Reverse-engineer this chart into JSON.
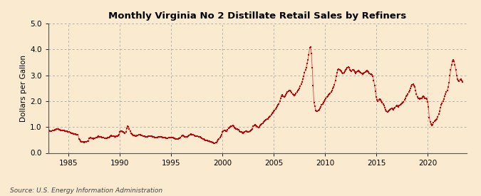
{
  "title": "Monthly Virginia No 2 Distillate Retail Sales by Refiners",
  "ylabel": "Dollars per Gallon",
  "xlabel": "",
  "source": "Source: U.S. Energy Information Administration",
  "bg_color": "#faebd0",
  "line_color": "#cc0000",
  "ylim": [
    0.0,
    5.0
  ],
  "yticks": [
    0.0,
    1.0,
    2.0,
    3.0,
    4.0,
    5.0
  ],
  "xticks": [
    1985,
    1990,
    1995,
    2000,
    2005,
    2010,
    2015,
    2020
  ],
  "xlim_start": 1983.0,
  "xlim_end": 2023.8,
  "data": [
    [
      1983.0,
      0.87
    ],
    [
      1983.083,
      0.86
    ],
    [
      1983.167,
      0.85
    ],
    [
      1983.25,
      0.84
    ],
    [
      1983.333,
      0.85
    ],
    [
      1983.417,
      0.86
    ],
    [
      1983.5,
      0.87
    ],
    [
      1983.583,
      0.88
    ],
    [
      1983.667,
      0.89
    ],
    [
      1983.75,
      0.9
    ],
    [
      1983.833,
      0.91
    ],
    [
      1983.917,
      0.92
    ],
    [
      1984.0,
      0.91
    ],
    [
      1984.083,
      0.9
    ],
    [
      1984.167,
      0.89
    ],
    [
      1984.25,
      0.88
    ],
    [
      1984.333,
      0.87
    ],
    [
      1984.417,
      0.88
    ],
    [
      1984.5,
      0.87
    ],
    [
      1984.583,
      0.86
    ],
    [
      1984.667,
      0.85
    ],
    [
      1984.75,
      0.84
    ],
    [
      1984.833,
      0.83
    ],
    [
      1984.917,
      0.82
    ],
    [
      1985.0,
      0.81
    ],
    [
      1985.083,
      0.8
    ],
    [
      1985.167,
      0.79
    ],
    [
      1985.25,
      0.77
    ],
    [
      1985.333,
      0.76
    ],
    [
      1985.417,
      0.75
    ],
    [
      1985.5,
      0.74
    ],
    [
      1985.583,
      0.73
    ],
    [
      1985.667,
      0.72
    ],
    [
      1985.75,
      0.71
    ],
    [
      1985.833,
      0.7
    ],
    [
      1985.917,
      0.69
    ],
    [
      1986.0,
      0.55
    ],
    [
      1986.083,
      0.5
    ],
    [
      1986.167,
      0.46
    ],
    [
      1986.25,
      0.44
    ],
    [
      1986.333,
      0.43
    ],
    [
      1986.417,
      0.42
    ],
    [
      1986.5,
      0.41
    ],
    [
      1986.583,
      0.42
    ],
    [
      1986.667,
      0.43
    ],
    [
      1986.75,
      0.44
    ],
    [
      1986.833,
      0.45
    ],
    [
      1986.917,
      0.46
    ],
    [
      1987.0,
      0.56
    ],
    [
      1987.083,
      0.57
    ],
    [
      1987.167,
      0.58
    ],
    [
      1987.25,
      0.57
    ],
    [
      1987.333,
      0.56
    ],
    [
      1987.417,
      0.55
    ],
    [
      1987.5,
      0.56
    ],
    [
      1987.583,
      0.57
    ],
    [
      1987.667,
      0.58
    ],
    [
      1987.75,
      0.6
    ],
    [
      1987.833,
      0.62
    ],
    [
      1987.917,
      0.64
    ],
    [
      1988.0,
      0.63
    ],
    [
      1988.083,
      0.62
    ],
    [
      1988.167,
      0.61
    ],
    [
      1988.25,
      0.6
    ],
    [
      1988.333,
      0.59
    ],
    [
      1988.417,
      0.58
    ],
    [
      1988.5,
      0.57
    ],
    [
      1988.583,
      0.57
    ],
    [
      1988.667,
      0.57
    ],
    [
      1988.75,
      0.57
    ],
    [
      1988.833,
      0.58
    ],
    [
      1988.917,
      0.59
    ],
    [
      1989.0,
      0.62
    ],
    [
      1989.083,
      0.65
    ],
    [
      1989.167,
      0.67
    ],
    [
      1989.25,
      0.66
    ],
    [
      1989.333,
      0.65
    ],
    [
      1989.417,
      0.64
    ],
    [
      1989.5,
      0.63
    ],
    [
      1989.583,
      0.63
    ],
    [
      1989.667,
      0.64
    ],
    [
      1989.75,
      0.65
    ],
    [
      1989.833,
      0.67
    ],
    [
      1989.917,
      0.7
    ],
    [
      1990.0,
      0.8
    ],
    [
      1990.083,
      0.85
    ],
    [
      1990.167,
      0.83
    ],
    [
      1990.25,
      0.82
    ],
    [
      1990.333,
      0.8
    ],
    [
      1990.417,
      0.78
    ],
    [
      1990.5,
      0.76
    ],
    [
      1990.583,
      0.82
    ],
    [
      1990.667,
      0.95
    ],
    [
      1990.75,
      1.02
    ],
    [
      1990.833,
      1.0
    ],
    [
      1990.917,
      0.92
    ],
    [
      1991.0,
      0.83
    ],
    [
      1991.083,
      0.76
    ],
    [
      1991.167,
      0.73
    ],
    [
      1991.25,
      0.7
    ],
    [
      1991.333,
      0.68
    ],
    [
      1991.417,
      0.67
    ],
    [
      1991.5,
      0.66
    ],
    [
      1991.583,
      0.66
    ],
    [
      1991.667,
      0.67
    ],
    [
      1991.75,
      0.68
    ],
    [
      1991.833,
      0.69
    ],
    [
      1991.917,
      0.7
    ],
    [
      1992.0,
      0.69
    ],
    [
      1992.083,
      0.68
    ],
    [
      1992.167,
      0.67
    ],
    [
      1992.25,
      0.66
    ],
    [
      1992.333,
      0.65
    ],
    [
      1992.417,
      0.64
    ],
    [
      1992.5,
      0.63
    ],
    [
      1992.583,
      0.63
    ],
    [
      1992.667,
      0.63
    ],
    [
      1992.75,
      0.64
    ],
    [
      1992.833,
      0.65
    ],
    [
      1992.917,
      0.66
    ],
    [
      1993.0,
      0.65
    ],
    [
      1993.083,
      0.64
    ],
    [
      1993.167,
      0.63
    ],
    [
      1993.25,
      0.62
    ],
    [
      1993.333,
      0.61
    ],
    [
      1993.417,
      0.6
    ],
    [
      1993.5,
      0.6
    ],
    [
      1993.583,
      0.6
    ],
    [
      1993.667,
      0.6
    ],
    [
      1993.75,
      0.61
    ],
    [
      1993.833,
      0.62
    ],
    [
      1993.917,
      0.63
    ],
    [
      1994.0,
      0.62
    ],
    [
      1994.083,
      0.61
    ],
    [
      1994.167,
      0.6
    ],
    [
      1994.25,
      0.59
    ],
    [
      1994.333,
      0.58
    ],
    [
      1994.417,
      0.58
    ],
    [
      1994.5,
      0.57
    ],
    [
      1994.583,
      0.57
    ],
    [
      1994.667,
      0.57
    ],
    [
      1994.75,
      0.58
    ],
    [
      1994.833,
      0.59
    ],
    [
      1994.917,
      0.6
    ],
    [
      1995.0,
      0.6
    ],
    [
      1995.083,
      0.59
    ],
    [
      1995.167,
      0.58
    ],
    [
      1995.25,
      0.57
    ],
    [
      1995.333,
      0.56
    ],
    [
      1995.417,
      0.55
    ],
    [
      1995.5,
      0.55
    ],
    [
      1995.583,
      0.55
    ],
    [
      1995.667,
      0.55
    ],
    [
      1995.75,
      0.56
    ],
    [
      1995.833,
      0.57
    ],
    [
      1995.917,
      0.59
    ],
    [
      1996.0,
      0.65
    ],
    [
      1996.083,
      0.68
    ],
    [
      1996.167,
      0.67
    ],
    [
      1996.25,
      0.65
    ],
    [
      1996.333,
      0.63
    ],
    [
      1996.417,
      0.62
    ],
    [
      1996.5,
      0.62
    ],
    [
      1996.583,
      0.63
    ],
    [
      1996.667,
      0.65
    ],
    [
      1996.75,
      0.67
    ],
    [
      1996.833,
      0.7
    ],
    [
      1996.917,
      0.72
    ],
    [
      1997.0,
      0.71
    ],
    [
      1997.083,
      0.7
    ],
    [
      1997.167,
      0.69
    ],
    [
      1997.25,
      0.68
    ],
    [
      1997.333,
      0.66
    ],
    [
      1997.417,
      0.65
    ],
    [
      1997.5,
      0.64
    ],
    [
      1997.583,
      0.64
    ],
    [
      1997.667,
      0.63
    ],
    [
      1997.75,
      0.62
    ],
    [
      1997.833,
      0.61
    ],
    [
      1997.917,
      0.6
    ],
    [
      1998.0,
      0.57
    ],
    [
      1998.083,
      0.55
    ],
    [
      1998.167,
      0.53
    ],
    [
      1998.25,
      0.51
    ],
    [
      1998.333,
      0.49
    ],
    [
      1998.417,
      0.48
    ],
    [
      1998.5,
      0.47
    ],
    [
      1998.583,
      0.46
    ],
    [
      1998.667,
      0.45
    ],
    [
      1998.75,
      0.45
    ],
    [
      1998.833,
      0.44
    ],
    [
      1998.917,
      0.42
    ],
    [
      1999.0,
      0.4
    ],
    [
      1999.083,
      0.39
    ],
    [
      1999.167,
      0.38
    ],
    [
      1999.25,
      0.38
    ],
    [
      1999.333,
      0.39
    ],
    [
      1999.417,
      0.41
    ],
    [
      1999.5,
      0.45
    ],
    [
      1999.583,
      0.5
    ],
    [
      1999.667,
      0.55
    ],
    [
      1999.75,
      0.6
    ],
    [
      1999.833,
      0.65
    ],
    [
      1999.917,
      0.7
    ],
    [
      2000.0,
      0.8
    ],
    [
      2000.083,
      0.85
    ],
    [
      2000.167,
      0.88
    ],
    [
      2000.25,
      0.87
    ],
    [
      2000.333,
      0.85
    ],
    [
      2000.417,
      0.83
    ],
    [
      2000.5,
      0.9
    ],
    [
      2000.583,
      0.95
    ],
    [
      2000.667,
      0.98
    ],
    [
      2000.75,
      1.0
    ],
    [
      2000.833,
      1.02
    ],
    [
      2000.917,
      1.04
    ],
    [
      2001.0,
      1.05
    ],
    [
      2001.083,
      1.02
    ],
    [
      2001.167,
      0.98
    ],
    [
      2001.25,
      0.95
    ],
    [
      2001.333,
      0.93
    ],
    [
      2001.417,
      0.91
    ],
    [
      2001.5,
      0.9
    ],
    [
      2001.583,
      0.89
    ],
    [
      2001.667,
      0.85
    ],
    [
      2001.75,
      0.82
    ],
    [
      2001.833,
      0.8
    ],
    [
      2001.917,
      0.78
    ],
    [
      2002.0,
      0.77
    ],
    [
      2002.083,
      0.79
    ],
    [
      2002.167,
      0.82
    ],
    [
      2002.25,
      0.84
    ],
    [
      2002.333,
      0.83
    ],
    [
      2002.417,
      0.82
    ],
    [
      2002.5,
      0.81
    ],
    [
      2002.583,
      0.82
    ],
    [
      2002.667,
      0.85
    ],
    [
      2002.75,
      0.88
    ],
    [
      2002.833,
      0.9
    ],
    [
      2002.917,
      0.92
    ],
    [
      2003.0,
      1.02
    ],
    [
      2003.083,
      1.05
    ],
    [
      2003.167,
      1.08
    ],
    [
      2003.25,
      1.05
    ],
    [
      2003.333,
      1.02
    ],
    [
      2003.417,
      1.0
    ],
    [
      2003.5,
      0.98
    ],
    [
      2003.583,
      1.0
    ],
    [
      2003.667,
      1.05
    ],
    [
      2003.75,
      1.1
    ],
    [
      2003.833,
      1.12
    ],
    [
      2003.917,
      1.15
    ],
    [
      2004.0,
      1.2
    ],
    [
      2004.083,
      1.22
    ],
    [
      2004.167,
      1.25
    ],
    [
      2004.25,
      1.28
    ],
    [
      2004.333,
      1.3
    ],
    [
      2004.417,
      1.32
    ],
    [
      2004.5,
      1.35
    ],
    [
      2004.583,
      1.38
    ],
    [
      2004.667,
      1.42
    ],
    [
      2004.75,
      1.48
    ],
    [
      2004.833,
      1.52
    ],
    [
      2004.917,
      1.55
    ],
    [
      2005.0,
      1.6
    ],
    [
      2005.083,
      1.65
    ],
    [
      2005.167,
      1.7
    ],
    [
      2005.25,
      1.75
    ],
    [
      2005.333,
      1.8
    ],
    [
      2005.417,
      1.85
    ],
    [
      2005.5,
      1.9
    ],
    [
      2005.583,
      2.0
    ],
    [
      2005.667,
      2.1
    ],
    [
      2005.75,
      2.2
    ],
    [
      2005.833,
      2.25
    ],
    [
      2005.917,
      2.2
    ],
    [
      2006.0,
      2.15
    ],
    [
      2006.083,
      2.2
    ],
    [
      2006.167,
      2.25
    ],
    [
      2006.25,
      2.3
    ],
    [
      2006.333,
      2.35
    ],
    [
      2006.417,
      2.38
    ],
    [
      2006.5,
      2.4
    ],
    [
      2006.583,
      2.42
    ],
    [
      2006.667,
      2.38
    ],
    [
      2006.75,
      2.32
    ],
    [
      2006.833,
      2.28
    ],
    [
      2006.917,
      2.25
    ],
    [
      2007.0,
      2.22
    ],
    [
      2007.083,
      2.25
    ],
    [
      2007.167,
      2.3
    ],
    [
      2007.25,
      2.35
    ],
    [
      2007.333,
      2.4
    ],
    [
      2007.417,
      2.45
    ],
    [
      2007.5,
      2.5
    ],
    [
      2007.583,
      2.58
    ],
    [
      2007.667,
      2.65
    ],
    [
      2007.75,
      2.75
    ],
    [
      2007.833,
      2.85
    ],
    [
      2007.917,
      2.95
    ],
    [
      2008.0,
      3.1
    ],
    [
      2008.083,
      3.2
    ],
    [
      2008.167,
      3.3
    ],
    [
      2008.25,
      3.45
    ],
    [
      2008.333,
      3.6
    ],
    [
      2008.417,
      3.8
    ],
    [
      2008.5,
      4.05
    ],
    [
      2008.583,
      4.1
    ],
    [
      2008.667,
      3.85
    ],
    [
      2008.75,
      3.3
    ],
    [
      2008.833,
      2.6
    ],
    [
      2008.917,
      1.95
    ],
    [
      2009.0,
      1.8
    ],
    [
      2009.083,
      1.65
    ],
    [
      2009.167,
      1.6
    ],
    [
      2009.25,
      1.62
    ],
    [
      2009.333,
      1.65
    ],
    [
      2009.417,
      1.68
    ],
    [
      2009.5,
      1.72
    ],
    [
      2009.583,
      1.78
    ],
    [
      2009.667,
      1.85
    ],
    [
      2009.75,
      1.9
    ],
    [
      2009.833,
      1.95
    ],
    [
      2009.917,
      2.0
    ],
    [
      2010.0,
      2.05
    ],
    [
      2010.083,
      2.1
    ],
    [
      2010.167,
      2.15
    ],
    [
      2010.25,
      2.2
    ],
    [
      2010.333,
      2.25
    ],
    [
      2010.417,
      2.28
    ],
    [
      2010.5,
      2.3
    ],
    [
      2010.583,
      2.35
    ],
    [
      2010.667,
      2.4
    ],
    [
      2010.75,
      2.48
    ],
    [
      2010.833,
      2.55
    ],
    [
      2010.917,
      2.62
    ],
    [
      2011.0,
      2.8
    ],
    [
      2011.083,
      2.95
    ],
    [
      2011.167,
      3.1
    ],
    [
      2011.25,
      3.2
    ],
    [
      2011.333,
      3.25
    ],
    [
      2011.417,
      3.22
    ],
    [
      2011.5,
      3.18
    ],
    [
      2011.583,
      3.15
    ],
    [
      2011.667,
      3.1
    ],
    [
      2011.75,
      3.08
    ],
    [
      2011.833,
      3.1
    ],
    [
      2011.917,
      3.15
    ],
    [
      2012.0,
      3.2
    ],
    [
      2012.083,
      3.25
    ],
    [
      2012.167,
      3.3
    ],
    [
      2012.25,
      3.32
    ],
    [
      2012.333,
      3.28
    ],
    [
      2012.417,
      3.22
    ],
    [
      2012.5,
      3.18
    ],
    [
      2012.583,
      3.15
    ],
    [
      2012.667,
      3.2
    ],
    [
      2012.75,
      3.22
    ],
    [
      2012.833,
      3.18
    ],
    [
      2012.917,
      3.12
    ],
    [
      2013.0,
      3.08
    ],
    [
      2013.083,
      3.12
    ],
    [
      2013.167,
      3.15
    ],
    [
      2013.25,
      3.18
    ],
    [
      2013.333,
      3.15
    ],
    [
      2013.417,
      3.12
    ],
    [
      2013.5,
      3.1
    ],
    [
      2013.583,
      3.08
    ],
    [
      2013.667,
      3.05
    ],
    [
      2013.75,
      3.08
    ],
    [
      2013.833,
      3.1
    ],
    [
      2013.917,
      3.12
    ],
    [
      2014.0,
      3.15
    ],
    [
      2014.083,
      3.18
    ],
    [
      2014.167,
      3.15
    ],
    [
      2014.25,
      3.12
    ],
    [
      2014.333,
      3.08
    ],
    [
      2014.417,
      3.05
    ],
    [
      2014.5,
      3.05
    ],
    [
      2014.583,
      3.02
    ],
    [
      2014.667,
      2.95
    ],
    [
      2014.75,
      2.8
    ],
    [
      2014.833,
      2.6
    ],
    [
      2014.917,
      2.38
    ],
    [
      2015.0,
      2.15
    ],
    [
      2015.083,
      2.05
    ],
    [
      2015.167,
      2.0
    ],
    [
      2015.25,
      2.05
    ],
    [
      2015.333,
      2.08
    ],
    [
      2015.417,
      2.05
    ],
    [
      2015.5,
      2.0
    ],
    [
      2015.583,
      1.95
    ],
    [
      2015.667,
      1.9
    ],
    [
      2015.75,
      1.82
    ],
    [
      2015.833,
      1.75
    ],
    [
      2015.917,
      1.68
    ],
    [
      2016.0,
      1.6
    ],
    [
      2016.083,
      1.58
    ],
    [
      2016.167,
      1.62
    ],
    [
      2016.25,
      1.65
    ],
    [
      2016.333,
      1.68
    ],
    [
      2016.417,
      1.7
    ],
    [
      2016.5,
      1.72
    ],
    [
      2016.583,
      1.7
    ],
    [
      2016.667,
      1.68
    ],
    [
      2016.75,
      1.72
    ],
    [
      2016.833,
      1.75
    ],
    [
      2016.917,
      1.8
    ],
    [
      2017.0,
      1.82
    ],
    [
      2017.083,
      1.8
    ],
    [
      2017.167,
      1.78
    ],
    [
      2017.25,
      1.82
    ],
    [
      2017.333,
      1.85
    ],
    [
      2017.417,
      1.88
    ],
    [
      2017.5,
      1.92
    ],
    [
      2017.583,
      1.95
    ],
    [
      2017.667,
      1.98
    ],
    [
      2017.75,
      2.05
    ],
    [
      2017.833,
      2.1
    ],
    [
      2017.917,
      2.18
    ],
    [
      2018.0,
      2.22
    ],
    [
      2018.083,
      2.28
    ],
    [
      2018.167,
      2.35
    ],
    [
      2018.25,
      2.42
    ],
    [
      2018.333,
      2.5
    ],
    [
      2018.417,
      2.58
    ],
    [
      2018.5,
      2.62
    ],
    [
      2018.583,
      2.65
    ],
    [
      2018.667,
      2.6
    ],
    [
      2018.75,
      2.55
    ],
    [
      2018.833,
      2.42
    ],
    [
      2018.917,
      2.28
    ],
    [
      2019.0,
      2.15
    ],
    [
      2019.083,
      2.12
    ],
    [
      2019.167,
      2.1
    ],
    [
      2019.25,
      2.08
    ],
    [
      2019.333,
      2.1
    ],
    [
      2019.417,
      2.12
    ],
    [
      2019.5,
      2.15
    ],
    [
      2019.583,
      2.18
    ],
    [
      2019.667,
      2.15
    ],
    [
      2019.75,
      2.12
    ],
    [
      2019.833,
      2.1
    ],
    [
      2019.917,
      2.08
    ],
    [
      2020.0,
      1.98
    ],
    [
      2020.083,
      1.78
    ],
    [
      2020.167,
      1.35
    ],
    [
      2020.25,
      1.2
    ],
    [
      2020.333,
      1.12
    ],
    [
      2020.417,
      1.05
    ],
    [
      2020.5,
      1.1
    ],
    [
      2020.583,
      1.18
    ],
    [
      2020.667,
      1.22
    ],
    [
      2020.75,
      1.25
    ],
    [
      2020.833,
      1.28
    ],
    [
      2020.917,
      1.32
    ],
    [
      2021.0,
      1.4
    ],
    [
      2021.083,
      1.5
    ],
    [
      2021.167,
      1.62
    ],
    [
      2021.25,
      1.75
    ],
    [
      2021.333,
      1.85
    ],
    [
      2021.417,
      1.92
    ],
    [
      2021.5,
      2.0
    ],
    [
      2021.583,
      2.08
    ],
    [
      2021.667,
      2.18
    ],
    [
      2021.75,
      2.28
    ],
    [
      2021.833,
      2.35
    ],
    [
      2021.917,
      2.42
    ],
    [
      2022.0,
      2.55
    ],
    [
      2022.083,
      2.7
    ],
    [
      2022.167,
      2.98
    ],
    [
      2022.25,
      3.2
    ],
    [
      2022.333,
      3.4
    ],
    [
      2022.417,
      3.55
    ],
    [
      2022.5,
      3.6
    ],
    [
      2022.583,
      3.55
    ],
    [
      2022.667,
      3.4
    ],
    [
      2022.75,
      3.2
    ],
    [
      2022.833,
      3.0
    ],
    [
      2022.917,
      2.85
    ],
    [
      2023.0,
      2.8
    ],
    [
      2023.083,
      2.78
    ],
    [
      2023.167,
      2.82
    ],
    [
      2023.25,
      2.85
    ],
    [
      2023.333,
      2.8
    ],
    [
      2023.417,
      2.75
    ]
  ]
}
